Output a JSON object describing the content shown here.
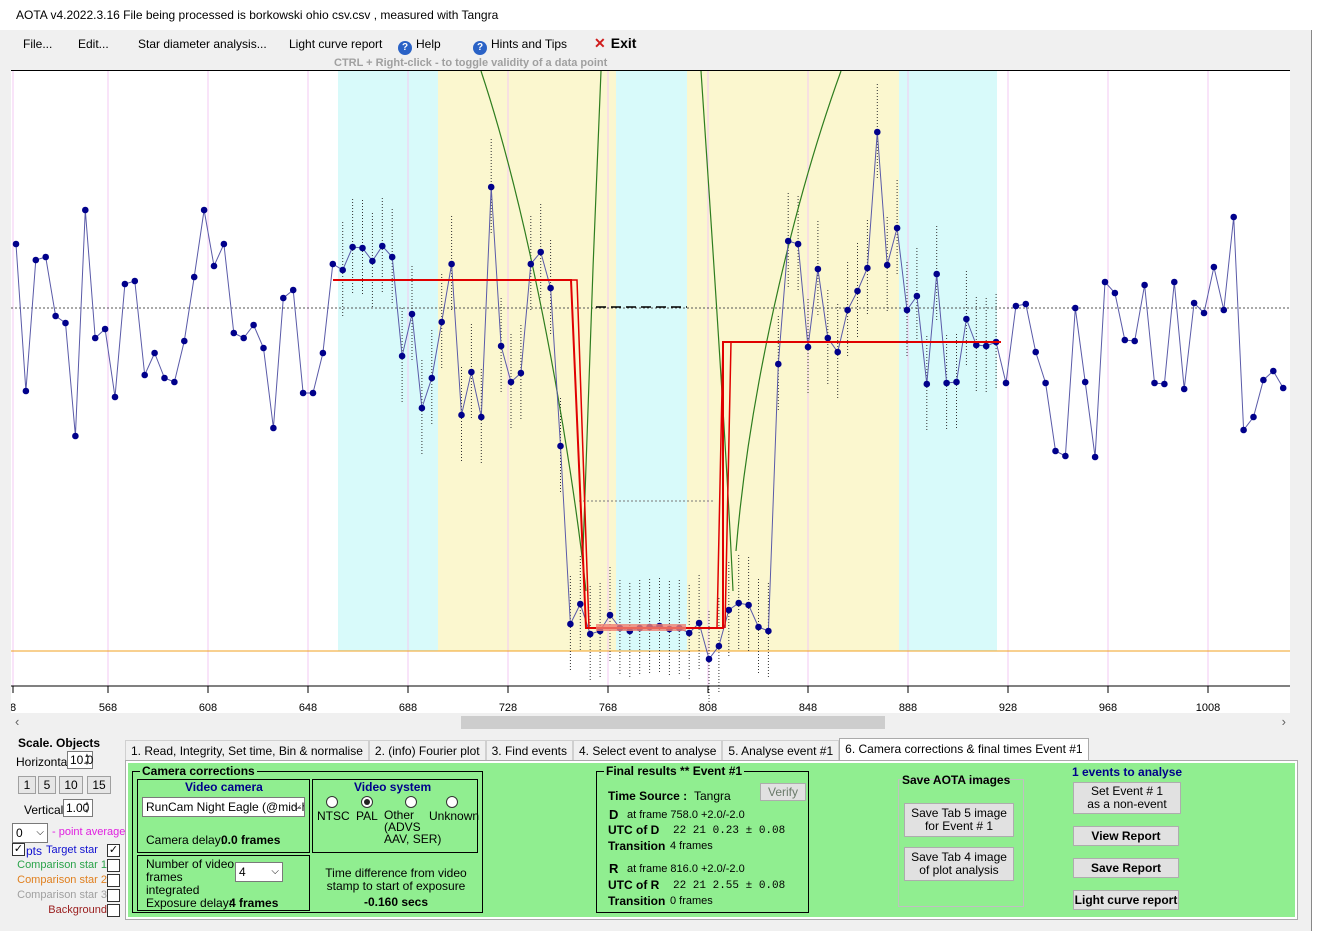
{
  "title": "AOTA v4.2022.3.16   File being processed is  borkowski ohio csv.csv ,  measured with Tangra",
  "menu": {
    "file": "File...",
    "edit": "Edit...",
    "star_diameter": "Star diameter analysis...",
    "light_curve_report": "Light curve report",
    "help": "Help",
    "hints": "Hints and Tips",
    "exit": "Exit"
  },
  "hint": "CTRL + Right-click   -   to toggle validity of a data point",
  "plot": {
    "x_ticks": [
      "8",
      "568",
      "608",
      "648",
      "688",
      "728",
      "768",
      "808",
      "848",
      "888",
      "928",
      "968",
      "1008"
    ],
    "colors": {
      "series": "#00008b",
      "fit": "#e00000",
      "model": "#2e7d1f",
      "baseline": "#f0a020",
      "outer_band": "#d8fafa",
      "inner_band": "#fbf7cf"
    }
  },
  "left": {
    "heading": "Scale.  Objects",
    "horizontal_label": "Horizontal",
    "horizontal_value": "10.0",
    "scale_buttons": [
      "1",
      "5",
      "10",
      "15"
    ],
    "vertical_label": "Vertical",
    "vertical_value": "1.00",
    "point_avg_value": "0",
    "point_avg_label": "- point average",
    "pts_label": "pts",
    "objects": [
      {
        "label": "Target star",
        "color": "#1010d0",
        "checked": true
      },
      {
        "label": "Comparison star 1",
        "color": "#2aa34a",
        "checked": false
      },
      {
        "label": "Comparison star 2",
        "color": "#e08020",
        "checked": false
      },
      {
        "label": "Comparison star 3",
        "color": "#a0a0a0",
        "checked": false
      },
      {
        "label": "Background",
        "color": "#9b2020",
        "checked": false
      }
    ]
  },
  "tabs": [
    "1. Read, Integrity, Set time, Bin & normalise",
    "2. (info)  Fourier plot",
    "3. Find events",
    "4. Select event to analyse",
    "5. Analyse event #1",
    "6. Camera corrections & final times Event #1"
  ],
  "camera": {
    "group_title": "Camera corrections",
    "video_camera_title": "Video camera",
    "camera_model": "RunCam Night Eagle (@mid-h",
    "camera_delay_label": "Camera delay:",
    "camera_delay_value": "0.0 frames",
    "video_system_title": "Video system",
    "systems": [
      "NTSC",
      "PAL",
      "Other\n(ADVS\nAAV, SER)",
      "Unknown"
    ],
    "frames_label": "Number of video frames integrated",
    "frames_value": "4",
    "exposure_label": "Exposure delay:",
    "exposure_value": "4 frames",
    "time_diff_label": "Time difference from video stamp to start of exposure",
    "time_diff_value": "-0.160 secs"
  },
  "final": {
    "title": "Final results  **  Event #1",
    "time_source_label": "Time Source :",
    "time_source_value": "Tangra",
    "verify": "Verify",
    "d_label": "D",
    "d_frame": "at frame  758.0  +2.0/-2.0",
    "utc_d_label": "UTC of D",
    "utc_d_value": "22 21  0.23 ± 0.08",
    "transition_label": "Transition",
    "d_transition": "4 frames",
    "r_label": "R",
    "r_frame": "at frame  816.0  +2.0/-2.0",
    "utc_r_label": "UTC of R",
    "utc_r_value": "22 21  2.55 ± 0.08",
    "r_transition": "0 frames"
  },
  "save": {
    "title": "Save AOTA images",
    "tab5": "Save Tab 5 image\nfor Event # 1",
    "tab4": "Save Tab 4 image\nof plot analysis"
  },
  "events": {
    "title": "1 events to analyse",
    "set_event": "Set Event # 1\nas a non-event",
    "view_report": "View Report",
    "save_report": "Save Report",
    "lc_report": "Light curve report"
  }
}
